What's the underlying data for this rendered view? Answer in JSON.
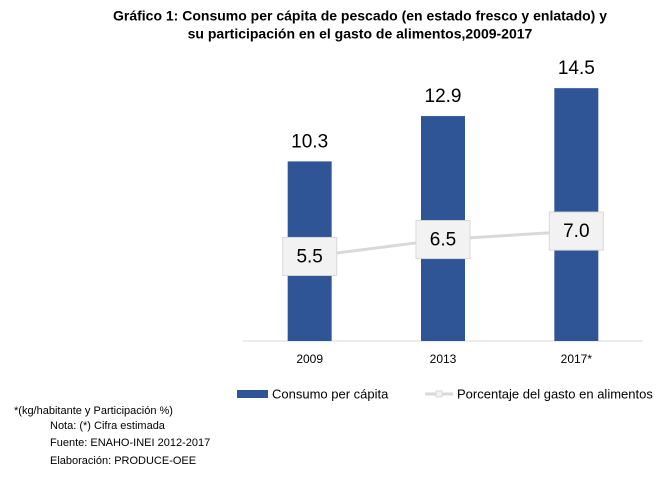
{
  "chart_data": {
    "type": "bar_line",
    "title": [
      "Gráfico 1: Consumo per cápita de pescado (en estado fresco y enlatado) y",
      "su participación en el gasto de alimentos,2009-2017"
    ],
    "categories": [
      "2009",
      "2013",
      "2017*"
    ],
    "series": [
      {
        "name": "Consumo per cápita",
        "type": "bar",
        "color": "#2f5597",
        "values": [
          10.3,
          12.9,
          14.5
        ]
      },
      {
        "name": "Porcentaje del gasto en alimentos",
        "type": "line",
        "axis": "y2",
        "color": "#d9d9d9",
        "values": [
          5.5,
          6.5,
          7.0
        ],
        "value_labels": [
          "5.5",
          "6.5",
          "7.0"
        ]
      }
    ],
    "ylim": [
      0,
      16
    ],
    "y2lim": [
      0.5,
      17
    ],
    "legend": "bottom",
    "notes": [
      "*(kg/habitante y Participación %)",
      "Nota: (*) Cifra estimada",
      "Fuente: ENAHO-INEI 2012-2017",
      "Elaboración:  PRODUCE-OEE"
    ]
  }
}
